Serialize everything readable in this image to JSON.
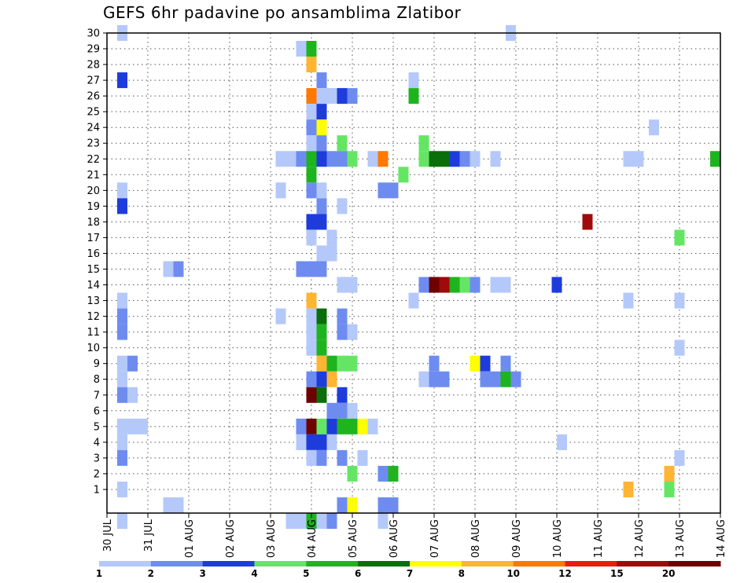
{
  "chart_data": {
    "type": "heatmap",
    "title": "GEFS 6hr padavine po ansamblima Zlatibor",
    "xlabel": "",
    "ylabel": "",
    "x_tick_labels": [
      "30 JUL",
      "31 JUL",
      "01 AUG",
      "02 AUG",
      "03 AUG",
      "04 AUG",
      "05 AUG",
      "06 AUG",
      "07 AUG",
      "08 AUG",
      "09 AUG",
      "10 AUG",
      "11 AUG",
      "12 AUG",
      "13 AUG",
      "14 AUG"
    ],
    "y_tick_labels": [
      "1",
      "2",
      "3",
      "4",
      "5",
      "6",
      "7",
      "8",
      "9",
      "10",
      "11",
      "12",
      "13",
      "14",
      "15",
      "16",
      "17",
      "18",
      "19",
      "20",
      "21",
      "22",
      "23",
      "24",
      "25",
      "26",
      "27",
      "28",
      "29",
      "30"
    ],
    "xlim": [
      0,
      15
    ],
    "ylim": [
      0,
      30
    ],
    "grid": true,
    "colorbar": {
      "labels": [
        "1",
        "2",
        "3",
        "4",
        "5",
        "6",
        "7",
        "8",
        "10",
        "12",
        "15",
        "20"
      ],
      "colors": [
        "#b4c8fa",
        "#6e8cf0",
        "#1e3cdc",
        "#64e664",
        "#1eb41e",
        "#0a6e0a",
        "#ffff00",
        "#ffb432",
        "#ff7800",
        "#e61e0a",
        "#a00a0a",
        "#6e0000"
      ]
    },
    "cells": [
      [
        0.25,
        30,
        0
      ],
      [
        9.75,
        30,
        0
      ],
      [
        4.625,
        29,
        0
      ],
      [
        4.875,
        29,
        4
      ],
      [
        4.875,
        28,
        7
      ],
      [
        0.25,
        27,
        2
      ],
      [
        5.125,
        27,
        1
      ],
      [
        7.375,
        27,
        0
      ],
      [
        4.875,
        26,
        8
      ],
      [
        5.125,
        26,
        0
      ],
      [
        5.375,
        26,
        0
      ],
      [
        5.625,
        26,
        2
      ],
      [
        5.875,
        26,
        1
      ],
      [
        7.375,
        26,
        4
      ],
      [
        4.875,
        25,
        0
      ],
      [
        5.125,
        25,
        2
      ],
      [
        4.875,
        24,
        1
      ],
      [
        5.125,
        24,
        6
      ],
      [
        13.25,
        24,
        0
      ],
      [
        4.875,
        23,
        0
      ],
      [
        5.125,
        23,
        1
      ],
      [
        5.625,
        23,
        3
      ],
      [
        7.625,
        23,
        3
      ],
      [
        4.125,
        22,
        0
      ],
      [
        4.375,
        22,
        0
      ],
      [
        4.625,
        22,
        1
      ],
      [
        4.875,
        22,
        4
      ],
      [
        5.125,
        22,
        2
      ],
      [
        5.375,
        22,
        1
      ],
      [
        5.625,
        22,
        1
      ],
      [
        5.875,
        22,
        3
      ],
      [
        6.375,
        22,
        0
      ],
      [
        6.625,
        22,
        8
      ],
      [
        7.625,
        22,
        3
      ],
      [
        7.875,
        22,
        5
      ],
      [
        8.125,
        22,
        5
      ],
      [
        8.375,
        22,
        2
      ],
      [
        8.625,
        22,
        1
      ],
      [
        8.875,
        22,
        0
      ],
      [
        9.375,
        22,
        0
      ],
      [
        12.625,
        22,
        0
      ],
      [
        12.875,
        22,
        0
      ],
      [
        14.75,
        22,
        4
      ],
      [
        14.98,
        22,
        1
      ],
      [
        4.875,
        21,
        4
      ],
      [
        7.125,
        21,
        3
      ],
      [
        0.25,
        20,
        0
      ],
      [
        4.125,
        20,
        0
      ],
      [
        4.875,
        20,
        1
      ],
      [
        5.125,
        20,
        0
      ],
      [
        6.625,
        20,
        1
      ],
      [
        6.875,
        20,
        1
      ],
      [
        0.25,
        19,
        2
      ],
      [
        5.125,
        19,
        1
      ],
      [
        5.625,
        19,
        0
      ],
      [
        4.875,
        18,
        2
      ],
      [
        5.125,
        18,
        2
      ],
      [
        11.625,
        18,
        10
      ],
      [
        4.875,
        17,
        0
      ],
      [
        5.375,
        17,
        0
      ],
      [
        13.875,
        17,
        3
      ],
      [
        5.125,
        16,
        0
      ],
      [
        5.375,
        16,
        0
      ],
      [
        1.375,
        15,
        0
      ],
      [
        1.625,
        15,
        1
      ],
      [
        4.625,
        15,
        1
      ],
      [
        4.875,
        15,
        1
      ],
      [
        5.125,
        15,
        1
      ],
      [
        5.625,
        14,
        0
      ],
      [
        5.875,
        14,
        0
      ],
      [
        7.625,
        14,
        1
      ],
      [
        7.875,
        14,
        11
      ],
      [
        8.125,
        14,
        10
      ],
      [
        8.375,
        14,
        4
      ],
      [
        8.625,
        14,
        3
      ],
      [
        8.875,
        14,
        1
      ],
      [
        9.375,
        14,
        0
      ],
      [
        9.625,
        14,
        0
      ],
      [
        10.875,
        14,
        2
      ],
      [
        0.25,
        13,
        0
      ],
      [
        4.875,
        13,
        7
      ],
      [
        7.375,
        13,
        0
      ],
      [
        12.625,
        13,
        0
      ],
      [
        13.875,
        13,
        0
      ],
      [
        0.25,
        12,
        1
      ],
      [
        4.125,
        12,
        0
      ],
      [
        4.875,
        12,
        0
      ],
      [
        5.125,
        12,
        5
      ],
      [
        5.625,
        12,
        1
      ],
      [
        0.25,
        11,
        1
      ],
      [
        4.875,
        11,
        0
      ],
      [
        5.125,
        11,
        4
      ],
      [
        5.625,
        11,
        1
      ],
      [
        5.875,
        11,
        0
      ],
      [
        4.875,
        10,
        0
      ],
      [
        5.125,
        10,
        4
      ],
      [
        13.875,
        10,
        0
      ],
      [
        0.25,
        9,
        0
      ],
      [
        0.5,
        9,
        1
      ],
      [
        5.125,
        9,
        7
      ],
      [
        5.375,
        9,
        4
      ],
      [
        5.625,
        9,
        3
      ],
      [
        5.875,
        9,
        3
      ],
      [
        7.875,
        9,
        1
      ],
      [
        8.875,
        9,
        6
      ],
      [
        9.125,
        9,
        2
      ],
      [
        9.625,
        9,
        1
      ],
      [
        14.98,
        9,
        0
      ],
      [
        0.25,
        8,
        0
      ],
      [
        4.875,
        8,
        1
      ],
      [
        5.125,
        8,
        2
      ],
      [
        5.375,
        8,
        7
      ],
      [
        7.625,
        8,
        0
      ],
      [
        7.875,
        8,
        1
      ],
      [
        8.125,
        8,
        1
      ],
      [
        9.125,
        8,
        1
      ],
      [
        9.375,
        8,
        1
      ],
      [
        9.625,
        8,
        4
      ],
      [
        9.875,
        8,
        1
      ],
      [
        0.25,
        7,
        1
      ],
      [
        0.5,
        7,
        0
      ],
      [
        4.875,
        7,
        11
      ],
      [
        5.125,
        7,
        5
      ],
      [
        5.625,
        7,
        2
      ],
      [
        5.375,
        6,
        1
      ],
      [
        5.625,
        6,
        1
      ],
      [
        5.875,
        6,
        0
      ],
      [
        0.25,
        5,
        0
      ],
      [
        0.5,
        5,
        0
      ],
      [
        0.75,
        5,
        0
      ],
      [
        4.625,
        5,
        1
      ],
      [
        4.875,
        5,
        11
      ],
      [
        5.125,
        5,
        3
      ],
      [
        5.375,
        5,
        2
      ],
      [
        5.625,
        5,
        4
      ],
      [
        5.875,
        5,
        4
      ],
      [
        6.125,
        5,
        6
      ],
      [
        6.375,
        5,
        0
      ],
      [
        0.25,
        4,
        0
      ],
      [
        4.625,
        4,
        0
      ],
      [
        4.875,
        4,
        2
      ],
      [
        5.125,
        4,
        2
      ],
      [
        5.375,
        4,
        0
      ],
      [
        11.0,
        4,
        0
      ],
      [
        0.25,
        3,
        1
      ],
      [
        4.875,
        3,
        0
      ],
      [
        5.125,
        3,
        1
      ],
      [
        5.625,
        3,
        1
      ],
      [
        6.125,
        3,
        0
      ],
      [
        13.875,
        3,
        0
      ],
      [
        5.875,
        2,
        3
      ],
      [
        6.625,
        2,
        1
      ],
      [
        6.875,
        2,
        4
      ],
      [
        13.625,
        2,
        7
      ],
      [
        0.25,
        1,
        0
      ],
      [
        12.625,
        1,
        7
      ],
      [
        13.625,
        1,
        3
      ],
      [
        1.375,
        0,
        0
      ],
      [
        1.625,
        0,
        0
      ],
      [
        5.625,
        0,
        1
      ],
      [
        5.875,
        0,
        6
      ],
      [
        6.625,
        0,
        1
      ],
      [
        6.875,
        0,
        1
      ],
      [
        14.98,
        0,
        0
      ],
      [
        0.25,
        -1,
        0
      ],
      [
        4.375,
        -1,
        0
      ],
      [
        4.625,
        -1,
        0
      ],
      [
        4.875,
        -1,
        4
      ],
      [
        5.125,
        -1,
        0
      ],
      [
        5.375,
        -1,
        1
      ],
      [
        6.625,
        -1,
        0
      ]
    ]
  }
}
